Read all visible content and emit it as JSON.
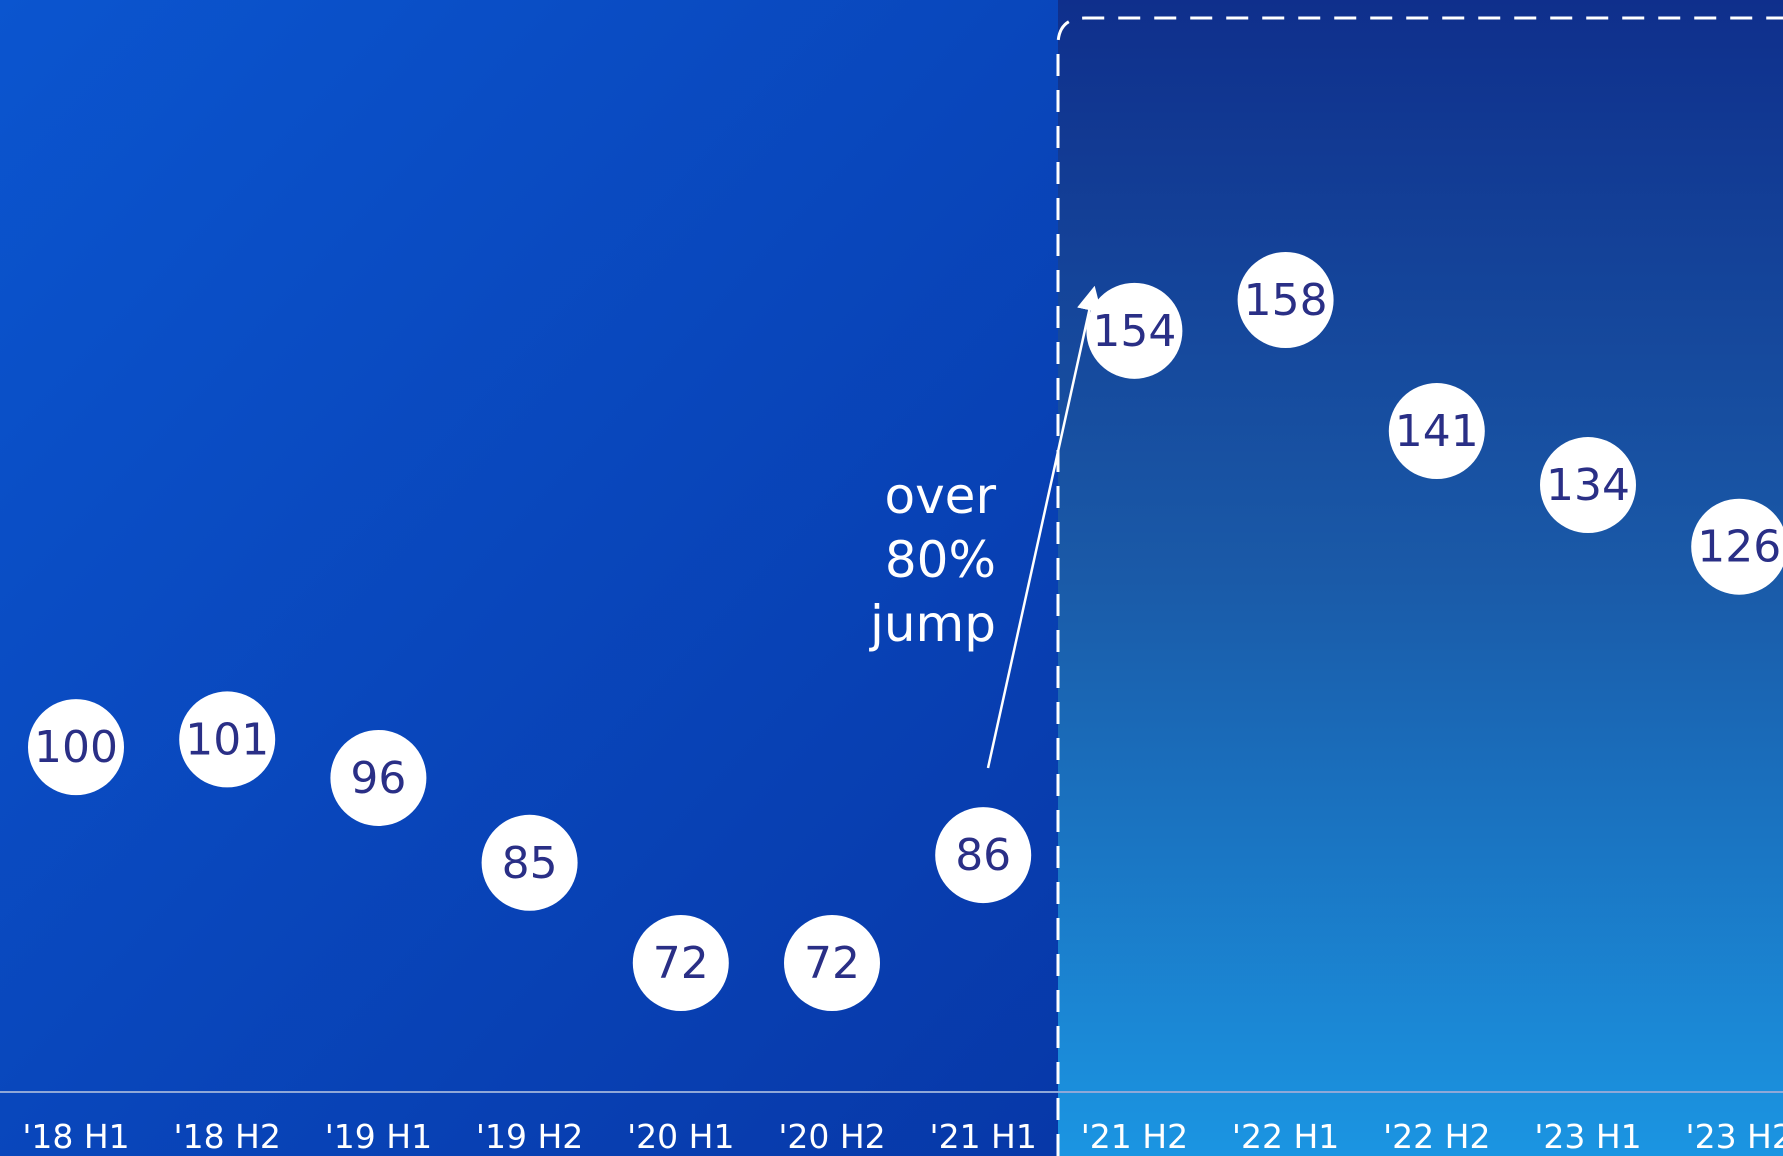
{
  "chart_data": {
    "type": "scatter",
    "categories": [
      "'18 H1",
      "'18 H2",
      "'19 H1",
      "'19 H2",
      "'20 H1",
      "'20 H2",
      "'21 H1",
      "'21 H2",
      "'22 H1",
      "'22 H2",
      "'23 H1",
      "'23 H2"
    ],
    "values": [
      100,
      101,
      96,
      85,
      72,
      72,
      86,
      154,
      158,
      141,
      134,
      126
    ],
    "value_labels": [
      "100",
      "101",
      "96",
      "85",
      "72",
      "72",
      "86",
      "154",
      "158",
      "141",
      "134",
      "126"
    ],
    "highlight_range": [
      "'21 H2",
      "'23 H2"
    ],
    "annotation": {
      "lines": [
        "over",
        "80%",
        "jump"
      ],
      "from": "'21 H1",
      "to": "'21 H2"
    },
    "ylim": [
      45,
      185
    ],
    "grid": false,
    "colors": {
      "background_left": "#0b4fc8",
      "background_right_top": "#12388f",
      "background_right_bottom": "#1a8fe0",
      "bubble_fill": "#ffffff",
      "bubble_text": "#2a2f86",
      "tick_text": "#ffffff",
      "axis_line": "#8fa8d8"
    }
  }
}
